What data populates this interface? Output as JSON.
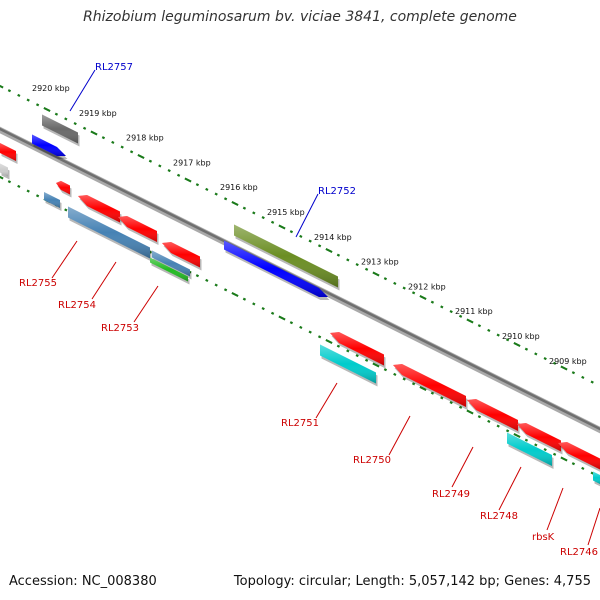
{
  "title": "Rhizobium leguminosarum bv. viciae 3841, complete genome",
  "footer": {
    "accession": "Accession: NC_008380",
    "summary": "Topology: circular; Length: 5,057,142 bp; Genes: 4,755"
  },
  "colors": {
    "backbone": "#888888",
    "tick": "#1a7a1a",
    "forward_label": "#0000cc",
    "reverse_label": "#cc0000",
    "red": "#ff0000",
    "blue": "#0000ff",
    "olive": "#6b8e23",
    "gray": "#696969",
    "steelblue": "#4682b4",
    "cyan": "#00cccc",
    "green": "#22bb22"
  },
  "kbp_labels": [
    "2920 kbp",
    "2919 kbp",
    "2918 kbp",
    "2917 kbp",
    "2916 kbp",
    "2915 kbp",
    "2914 kbp",
    "2913 kbp",
    "2912 kbp",
    "2911 kbp",
    "2910 kbp",
    "2909 kbp"
  ],
  "genes": [
    {
      "name": "RL2757",
      "strand": "forward"
    },
    {
      "name": "RL2752",
      "strand": "forward"
    },
    {
      "name": "RL2755",
      "strand": "reverse"
    },
    {
      "name": "RL2754",
      "strand": "reverse"
    },
    {
      "name": "RL2753",
      "strand": "reverse"
    },
    {
      "name": "RL2751",
      "strand": "reverse"
    },
    {
      "name": "RL2750",
      "strand": "reverse"
    },
    {
      "name": "RL2749",
      "strand": "reverse"
    },
    {
      "name": "RL2748",
      "strand": "reverse"
    },
    {
      "name": "rbsK",
      "strand": "reverse"
    },
    {
      "name": "RL2746",
      "strand": "reverse"
    }
  ]
}
